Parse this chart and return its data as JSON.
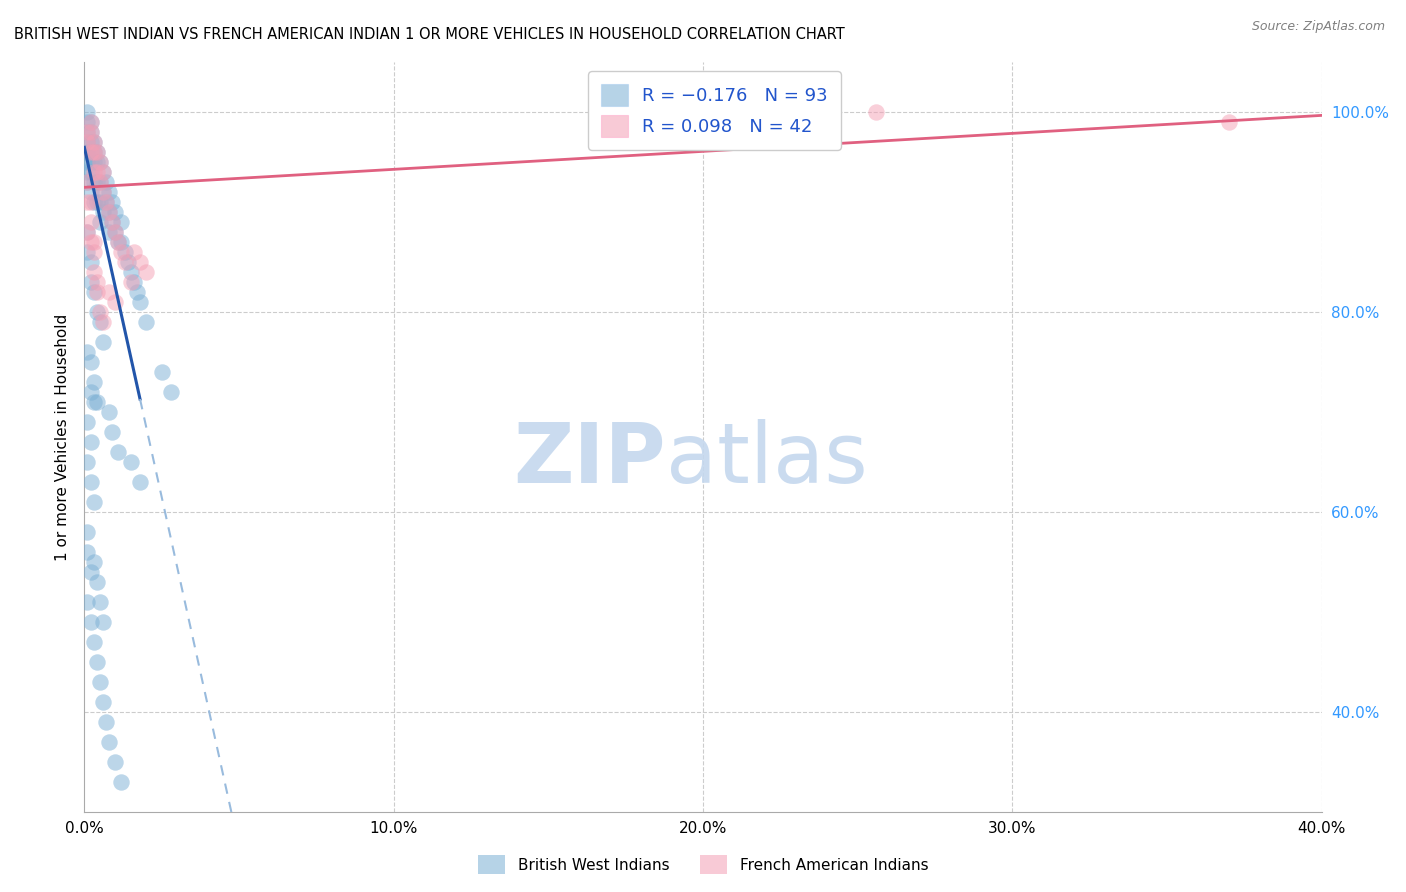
{
  "title": "BRITISH WEST INDIAN VS FRENCH AMERICAN INDIAN 1 OR MORE VEHICLES IN HOUSEHOLD CORRELATION CHART",
  "source": "Source: ZipAtlas.com",
  "ylabel": "1 or more Vehicles in Household",
  "xlim": [
    0.0,
    0.4
  ],
  "ylim": [
    0.3,
    1.05
  ],
  "xtick_labels": [
    "0.0%",
    "10.0%",
    "20.0%",
    "30.0%",
    "40.0%"
  ],
  "xtick_vals": [
    0.0,
    0.1,
    0.2,
    0.3,
    0.4
  ],
  "ytick_labels_right": [
    "40.0%",
    "60.0%",
    "80.0%",
    "100.0%"
  ],
  "ytick_vals_right": [
    0.4,
    0.6,
    0.8,
    1.0
  ],
  "R_blue": -0.176,
  "N_blue": 93,
  "R_pink": 0.098,
  "N_pink": 42,
  "blue_color": "#7BAFD4",
  "pink_color": "#F4A0B5",
  "blue_line_solid_color": "#2255AA",
  "blue_line_dash_color": "#99BBDD",
  "pink_line_color": "#E06080",
  "legend_label_blue": "British West Indians",
  "legend_label_pink": "French American Indians",
  "blue_x": [
    0.001,
    0.001,
    0.001,
    0.001,
    0.001,
    0.001,
    0.001,
    0.001,
    0.002,
    0.002,
    0.002,
    0.002,
    0.002,
    0.002,
    0.002,
    0.003,
    0.003,
    0.003,
    0.003,
    0.003,
    0.004,
    0.004,
    0.004,
    0.004,
    0.005,
    0.005,
    0.005,
    0.005,
    0.006,
    0.006,
    0.006,
    0.007,
    0.007,
    0.008,
    0.008,
    0.008,
    0.009,
    0.009,
    0.01,
    0.01,
    0.011,
    0.012,
    0.012,
    0.013,
    0.014,
    0.015,
    0.016,
    0.017,
    0.018,
    0.02,
    0.001,
    0.001,
    0.002,
    0.002,
    0.003,
    0.004,
    0.005,
    0.006,
    0.001,
    0.002,
    0.003,
    0.004,
    0.001,
    0.002,
    0.001,
    0.002,
    0.003,
    0.001,
    0.001,
    0.002,
    0.001,
    0.002,
    0.003,
    0.004,
    0.005,
    0.006,
    0.007,
    0.008,
    0.01,
    0.012,
    0.015,
    0.018,
    0.002,
    0.003,
    0.003,
    0.004,
    0.005,
    0.006,
    0.025,
    0.028,
    0.008,
    0.009,
    0.011
  ],
  "blue_y": [
    1.0,
    0.99,
    0.98,
    0.97,
    0.96,
    0.95,
    0.94,
    0.93,
    0.99,
    0.98,
    0.97,
    0.96,
    0.95,
    0.94,
    0.92,
    0.97,
    0.96,
    0.95,
    0.93,
    0.91,
    0.96,
    0.95,
    0.93,
    0.91,
    0.95,
    0.93,
    0.91,
    0.89,
    0.94,
    0.92,
    0.9,
    0.93,
    0.91,
    0.92,
    0.9,
    0.88,
    0.91,
    0.89,
    0.9,
    0.88,
    0.87,
    0.89,
    0.87,
    0.86,
    0.85,
    0.84,
    0.83,
    0.82,
    0.81,
    0.79,
    0.88,
    0.86,
    0.85,
    0.83,
    0.82,
    0.8,
    0.79,
    0.77,
    0.76,
    0.75,
    0.73,
    0.71,
    0.69,
    0.67,
    0.65,
    0.63,
    0.61,
    0.58,
    0.56,
    0.54,
    0.51,
    0.49,
    0.47,
    0.45,
    0.43,
    0.41,
    0.39,
    0.37,
    0.35,
    0.33,
    0.65,
    0.63,
    0.72,
    0.71,
    0.55,
    0.53,
    0.51,
    0.49,
    0.74,
    0.72,
    0.7,
    0.68,
    0.66
  ],
  "pink_x": [
    0.001,
    0.001,
    0.002,
    0.002,
    0.002,
    0.003,
    0.003,
    0.003,
    0.004,
    0.004,
    0.005,
    0.005,
    0.006,
    0.006,
    0.007,
    0.008,
    0.009,
    0.01,
    0.011,
    0.012,
    0.013,
    0.015,
    0.001,
    0.002,
    0.003,
    0.004,
    0.005,
    0.006,
    0.001,
    0.002,
    0.003,
    0.001,
    0.002,
    0.003,
    0.004,
    0.016,
    0.018,
    0.02,
    0.008,
    0.01,
    0.256,
    0.37
  ],
  "pink_y": [
    0.98,
    0.97,
    0.99,
    0.98,
    0.96,
    0.97,
    0.96,
    0.94,
    0.96,
    0.94,
    0.95,
    0.93,
    0.94,
    0.92,
    0.91,
    0.9,
    0.89,
    0.88,
    0.87,
    0.86,
    0.85,
    0.83,
    0.88,
    0.87,
    0.84,
    0.82,
    0.8,
    0.79,
    0.91,
    0.89,
    0.87,
    0.93,
    0.91,
    0.86,
    0.83,
    0.86,
    0.85,
    0.84,
    0.82,
    0.81,
    1.0,
    0.99
  ],
  "blue_line_x0": 0.0,
  "blue_line_x_solid_end": 0.018,
  "blue_line_x1": 0.4,
  "pink_line_x0": 0.0,
  "pink_line_x1": 0.4
}
